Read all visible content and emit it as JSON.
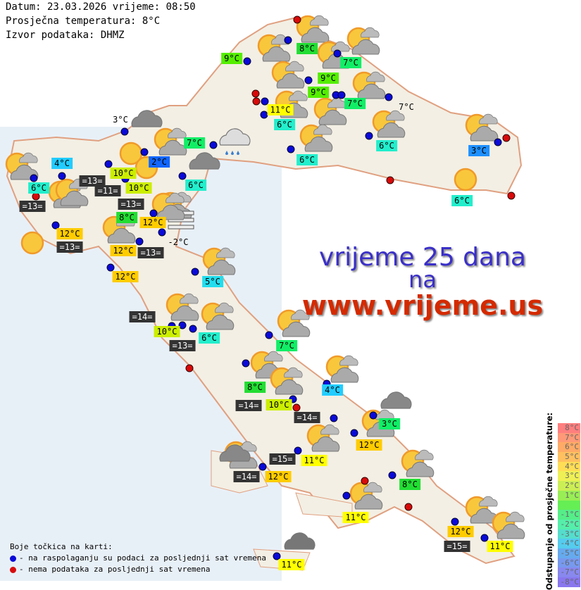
{
  "header": {
    "date_line": "Datum: 23.03.2026 vrijeme: 08:50",
    "avg_temp_line": "Prosječna temperatura: 8°C",
    "source_line": "Izvor podataka: DHMZ"
  },
  "promo": {
    "line1": "vrijeme 25 dana",
    "line2": "na",
    "line3": "www.vrijeme.us",
    "colors": {
      "line1": "#3a2fc8",
      "line3": "#d42a00"
    }
  },
  "stations": [
    {
      "text": "9°C",
      "color": "#55ee00"
    },
    {
      "text": "8°C",
      "color": "#22dd33"
    },
    {
      "text": "7°C",
      "color": "#11ee66"
    },
    {
      "text": "9°C",
      "color": "#55ee00"
    },
    {
      "text": "9°C",
      "color": "#55ee00"
    },
    {
      "text": "7°C",
      "color": "#11ee66"
    },
    {
      "text": "7°C",
      "color": "none"
    },
    {
      "text": "11°C",
      "color": "#ffff00"
    },
    {
      "text": "6°C",
      "color": "#22eecc"
    },
    {
      "text": "6°C",
      "color": "#22eecc"
    },
    {
      "text": "3°C",
      "color": "#1e90ff"
    },
    {
      "text": "6°C",
      "color": "#22eecc"
    },
    {
      "text": "7°C",
      "color": "#11ee66"
    },
    {
      "text": "2°C",
      "color": "#1166ff"
    },
    {
      "text": "3°C",
      "color": "none"
    },
    {
      "text": "4°C",
      "color": "#22ccff"
    },
    {
      "text": "6°C",
      "color": "#22eecc"
    },
    {
      "text": "=13=",
      "color": "dark"
    },
    {
      "text": "=13=",
      "color": "dark"
    },
    {
      "text": "=11=",
      "color": "dark"
    },
    {
      "text": "=13=",
      "color": "dark"
    },
    {
      "text": "10°C",
      "color": "#ccee00"
    },
    {
      "text": "10°C",
      "color": "#ccee00"
    },
    {
      "text": "8°C",
      "color": "#22dd33"
    },
    {
      "text": "6°C",
      "color": "#22eecc"
    },
    {
      "text": "12°C",
      "color": "#ffcc00"
    },
    {
      "text": "-2°C",
      "color": "none"
    },
    {
      "text": "12°C",
      "color": "#ffcc00"
    },
    {
      "text": "=13=",
      "color": "dark"
    },
    {
      "text": "12°C",
      "color": "#ffcc00"
    },
    {
      "text": "=13=",
      "color": "dark"
    },
    {
      "text": "12°C",
      "color": "#ffcc00"
    },
    {
      "text": "6°C",
      "color": "#22eecc"
    },
    {
      "text": "5°C",
      "color": "#22ddee"
    },
    {
      "text": "=14=",
      "color": "dark"
    },
    {
      "text": "10°C",
      "color": "#ccee00"
    },
    {
      "text": "6°C",
      "color": "#22eecc"
    },
    {
      "text": "=13=",
      "color": "dark"
    },
    {
      "text": "7°C",
      "color": "#11ee66"
    },
    {
      "text": "8°C",
      "color": "#22dd33"
    },
    {
      "text": "4°C",
      "color": "#22ccff"
    },
    {
      "text": "=14=",
      "color": "dark"
    },
    {
      "text": "10°C",
      "color": "#ccee00"
    },
    {
      "text": "=14=",
      "color": "dark"
    },
    {
      "text": "3°C",
      "color": "#11ee66"
    },
    {
      "text": "12°C",
      "color": "#ffcc00"
    },
    {
      "text": "=15=",
      "color": "dark"
    },
    {
      "text": "11°C",
      "color": "#ffff00"
    },
    {
      "text": "=14=",
      "color": "dark"
    },
    {
      "text": "12°C",
      "color": "#ffcc00"
    },
    {
      "text": "8°C",
      "color": "#22dd33"
    },
    {
      "text": "11°C",
      "color": "#ffff00"
    },
    {
      "text": "12°C",
      "color": "#ffcc00"
    },
    {
      "text": "=15=",
      "color": "dark"
    },
    {
      "text": "11°C",
      "color": "#ffff00"
    },
    {
      "text": "11°C",
      "color": "#ffff00"
    }
  ],
  "icons": [
    "sun-cloud",
    "sun-cloud",
    "sun-cloud",
    "sun-cloud",
    "sun-cloud",
    "sun-cloud",
    "sun-cloud",
    "sun-cloud",
    "sun-cloud",
    "sun-cloud",
    "sun-cloud",
    "cloud",
    "rain-cloud",
    "sun-cloud",
    "sun",
    "sun",
    "cloud",
    "sun-cloud",
    "sun-cloud",
    "sun-cloud",
    "sun",
    "sun-cloud",
    "fog",
    "sun-cloud",
    "sun-cloud",
    "sun-cloud",
    "sun-cloud",
    "sun-cloud",
    "sun-cloud",
    "sun-cloud",
    "sun-cloud",
    "cloud",
    "sun-cloud",
    "sun-cloud",
    "sun-cloud",
    "cloud-dark",
    "sun-cloud",
    "sun-cloud",
    "sun-cloud",
    "sun",
    "sun-cloud",
    "sun-cloud",
    "cloud"
  ],
  "legend": {
    "title": "Boje točkica na karti:",
    "blue": "- na raspolaganju su podaci za posljednji sat vremena",
    "red": "- nema podataka za posljednji sat vremena",
    "blue_color": "#0a0ad8",
    "red_color": "#d80a0a"
  },
  "scale": {
    "title": "Odstupanje od prosječne temperature:",
    "entries": [
      {
        "label": "8°C",
        "color": "#ff7f7f"
      },
      {
        "label": "7°C",
        "color": "#ff9977"
      },
      {
        "label": "6°C",
        "color": "#ffaa66"
      },
      {
        "label": "5°C",
        "color": "#ffc060"
      },
      {
        "label": "4°C",
        "color": "#ffdd55"
      },
      {
        "label": "3°C",
        "color": "#eef055"
      },
      {
        "label": "2°C",
        "color": "#ccee55"
      },
      {
        "label": "1°C",
        "color": "#99ee55"
      },
      {
        "label": "",
        "color": "#66ee55"
      },
      {
        "label": "-1°C",
        "color": "#55ee88"
      },
      {
        "label": "-2°C",
        "color": "#55eeaa"
      },
      {
        "label": "-3°C",
        "color": "#55ddcc"
      },
      {
        "label": "-4°C",
        "color": "#55ccee"
      },
      {
        "label": "-5°C",
        "color": "#66aaee"
      },
      {
        "label": "-6°C",
        "color": "#7799ee"
      },
      {
        "label": "-7°C",
        "color": "#8888ee"
      },
      {
        "label": "-8°C",
        "color": "#8877ee"
      }
    ]
  }
}
